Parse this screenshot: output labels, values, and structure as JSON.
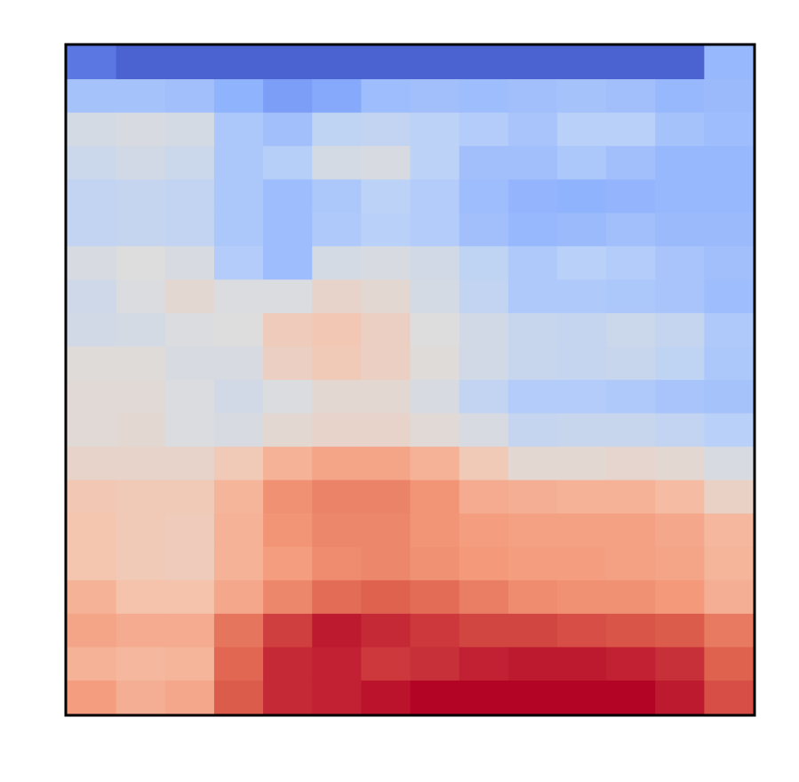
{
  "chart_data": {
    "type": "heatmap",
    "title": "",
    "xlabel": "",
    "ylabel": "",
    "colormap": "coolwarm",
    "axes_ticks_visible": false,
    "grid": false,
    "legend": "none",
    "color_range": [
      0,
      1
    ],
    "rows": 20,
    "cols": 14,
    "values": [
      [
        0.1,
        0.05,
        0.05,
        0.05,
        0.05,
        0.05,
        0.05,
        0.05,
        0.05,
        0.05,
        0.05,
        0.05,
        0.05,
        0.28
      ],
      [
        0.32,
        0.32,
        0.31,
        0.26,
        0.2,
        0.23,
        0.3,
        0.31,
        0.3,
        0.31,
        0.32,
        0.31,
        0.28,
        0.29
      ],
      [
        0.47,
        0.48,
        0.47,
        0.34,
        0.31,
        0.4,
        0.41,
        0.39,
        0.36,
        0.33,
        0.38,
        0.38,
        0.32,
        0.3
      ],
      [
        0.44,
        0.46,
        0.44,
        0.34,
        0.37,
        0.47,
        0.48,
        0.39,
        0.31,
        0.31,
        0.34,
        0.31,
        0.28,
        0.28
      ],
      [
        0.41,
        0.42,
        0.41,
        0.34,
        0.3,
        0.34,
        0.39,
        0.36,
        0.3,
        0.27,
        0.26,
        0.27,
        0.28,
        0.28
      ],
      [
        0.41,
        0.42,
        0.41,
        0.34,
        0.3,
        0.35,
        0.38,
        0.36,
        0.31,
        0.28,
        0.29,
        0.31,
        0.29,
        0.29
      ],
      [
        0.48,
        0.5,
        0.48,
        0.36,
        0.3,
        0.47,
        0.48,
        0.46,
        0.4,
        0.35,
        0.38,
        0.36,
        0.33,
        0.31
      ],
      [
        0.45,
        0.49,
        0.53,
        0.49,
        0.49,
        0.55,
        0.53,
        0.47,
        0.41,
        0.35,
        0.35,
        0.34,
        0.33,
        0.3
      ],
      [
        0.46,
        0.47,
        0.49,
        0.5,
        0.59,
        0.61,
        0.57,
        0.5,
        0.46,
        0.43,
        0.42,
        0.44,
        0.42,
        0.35
      ],
      [
        0.51,
        0.51,
        0.48,
        0.48,
        0.57,
        0.6,
        0.57,
        0.51,
        0.46,
        0.43,
        0.42,
        0.43,
        0.4,
        0.34
      ],
      [
        0.52,
        0.52,
        0.49,
        0.46,
        0.49,
        0.53,
        0.53,
        0.48,
        0.41,
        0.36,
        0.36,
        0.35,
        0.33,
        0.32
      ],
      [
        0.52,
        0.53,
        0.49,
        0.48,
        0.53,
        0.55,
        0.55,
        0.52,
        0.48,
        0.42,
        0.43,
        0.43,
        0.41,
        0.38
      ],
      [
        0.55,
        0.55,
        0.55,
        0.6,
        0.68,
        0.72,
        0.72,
        0.68,
        0.6,
        0.53,
        0.53,
        0.54,
        0.53,
        0.48
      ],
      [
        0.61,
        0.6,
        0.6,
        0.67,
        0.77,
        0.8,
        0.8,
        0.76,
        0.7,
        0.69,
        0.68,
        0.68,
        0.65,
        0.56
      ],
      [
        0.62,
        0.6,
        0.59,
        0.68,
        0.76,
        0.79,
        0.79,
        0.76,
        0.74,
        0.73,
        0.73,
        0.73,
        0.71,
        0.66
      ],
      [
        0.62,
        0.6,
        0.59,
        0.68,
        0.74,
        0.78,
        0.79,
        0.77,
        0.75,
        0.74,
        0.74,
        0.73,
        0.72,
        0.67
      ],
      [
        0.68,
        0.63,
        0.63,
        0.71,
        0.79,
        0.85,
        0.87,
        0.85,
        0.81,
        0.78,
        0.77,
        0.77,
        0.75,
        0.69
      ],
      [
        0.72,
        0.7,
        0.7,
        0.83,
        0.92,
        0.97,
        0.95,
        0.93,
        0.91,
        0.91,
        0.9,
        0.89,
        0.88,
        0.82
      ],
      [
        0.68,
        0.66,
        0.67,
        0.86,
        0.95,
        0.96,
        0.93,
        0.94,
        0.96,
        0.97,
        0.97,
        0.96,
        0.94,
        0.87
      ],
      [
        0.74,
        0.69,
        0.71,
        0.88,
        0.95,
        0.96,
        0.98,
        1.0,
        1.0,
        1.0,
        1.0,
        1.0,
        0.97,
        0.9
      ]
    ]
  }
}
